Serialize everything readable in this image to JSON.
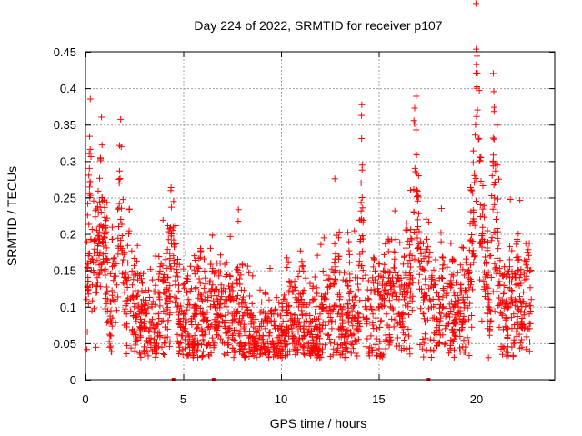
{
  "chart_data": {
    "type": "scatter",
    "title": "Day 224 of 2022, SRMTID for receiver p107",
    "xlabel": "GPS time / hours",
    "ylabel": "SRMTID / TECUs",
    "xlim": [
      0,
      24
    ],
    "ylim": [
      0,
      0.45
    ],
    "xticks": [
      0,
      5,
      10,
      15,
      20
    ],
    "xtick_labels": [
      "0",
      "5",
      "10",
      "15",
      "20"
    ],
    "yticks": [
      0,
      0.05,
      0.1,
      0.15,
      0.2,
      0.25,
      0.3,
      0.35,
      0.4,
      0.45
    ],
    "ytick_labels": [
      "0",
      "0.05",
      "0.1",
      "0.15",
      "0.2",
      "0.25",
      "0.3",
      "0.35",
      "0.4",
      "0.45"
    ],
    "grid": true,
    "marker": "+",
    "series": [
      {
        "name": "SRMTID",
        "color": "#ff0000",
        "points": [
          [
            0.05,
            0.11
          ],
          [
            0.1,
            0.16
          ],
          [
            0.15,
            0.17
          ],
          [
            0.2,
            0.29
          ],
          [
            0.22,
            0.25
          ],
          [
            0.25,
            0.27
          ],
          [
            0.3,
            0.15
          ],
          [
            0.35,
            0.13
          ],
          [
            0.4,
            0.15
          ],
          [
            0.45,
            0.19
          ],
          [
            0.5,
            0.16
          ],
          [
            0.6,
            0.14
          ],
          [
            0.7,
            0.17
          ],
          [
            0.8,
            0.23
          ],
          [
            0.85,
            0.25
          ],
          [
            0.9,
            0.19
          ],
          [
            1.0,
            0.2
          ],
          [
            1.1,
            0.12
          ],
          [
            1.2,
            0.08
          ],
          [
            1.3,
            0.06
          ],
          [
            1.4,
            0.16
          ],
          [
            1.5,
            0.11
          ],
          [
            1.6,
            0.13
          ],
          [
            1.7,
            0.21
          ],
          [
            1.8,
            0.22
          ],
          [
            1.9,
            0.18
          ],
          [
            2.0,
            0.12
          ],
          [
            2.1,
            0.09
          ],
          [
            2.2,
            0.14
          ],
          [
            2.3,
            0.11
          ],
          [
            2.4,
            0.13
          ],
          [
            2.5,
            0.1
          ],
          [
            2.6,
            0.08
          ],
          [
            2.7,
            0.12
          ],
          [
            2.8,
            0.06
          ],
          [
            2.9,
            0.1
          ],
          [
            3.0,
            0.07
          ],
          [
            3.1,
            0.09
          ],
          [
            3.2,
            0.05
          ],
          [
            3.3,
            0.08
          ],
          [
            3.4,
            0.1
          ],
          [
            3.5,
            0.07
          ],
          [
            3.6,
            0.09
          ],
          [
            3.7,
            0.06
          ],
          [
            3.8,
            0.11
          ],
          [
            3.9,
            0.08
          ],
          [
            4.0,
            0.12
          ],
          [
            4.1,
            0.09
          ],
          [
            4.2,
            0.14
          ],
          [
            4.3,
            0.16
          ],
          [
            4.4,
            0.2
          ],
          [
            4.5,
            0.17
          ],
          [
            4.6,
            0.13
          ],
          [
            4.7,
            0.1
          ],
          [
            4.8,
            0.08
          ],
          [
            4.9,
            0.06
          ],
          [
            5.0,
            0.09
          ],
          [
            5.1,
            0.07
          ],
          [
            5.2,
            0.12
          ],
          [
            5.3,
            0.06
          ],
          [
            5.4,
            0.08
          ],
          [
            5.5,
            0.05
          ],
          [
            5.6,
            0.1
          ],
          [
            5.7,
            0.07
          ],
          [
            5.8,
            0.12
          ],
          [
            5.9,
            0.09
          ],
          [
            6.0,
            0.06
          ],
          [
            6.1,
            0.11
          ],
          [
            6.2,
            0.08
          ],
          [
            6.3,
            0.05
          ],
          [
            6.4,
            0.1
          ],
          [
            6.5,
            0.13
          ],
          [
            6.6,
            0.07
          ],
          [
            6.7,
            0.09
          ],
          [
            6.8,
            0.06
          ],
          [
            6.9,
            0.11
          ],
          [
            7.0,
            0.08
          ],
          [
            7.1,
            0.05
          ],
          [
            7.2,
            0.1
          ],
          [
            7.3,
            0.07
          ],
          [
            7.4,
            0.12
          ],
          [
            7.5,
            0.09
          ],
          [
            7.6,
            0.04
          ],
          [
            7.7,
            0.08
          ],
          [
            7.8,
            0.15
          ],
          [
            7.9,
            0.06
          ],
          [
            8.0,
            0.1
          ],
          [
            8.1,
            0.07
          ],
          [
            8.2,
            0.05
          ],
          [
            8.3,
            0.09
          ],
          [
            8.4,
            0.06
          ],
          [
            8.5,
            0.08
          ],
          [
            8.6,
            0.05
          ],
          [
            8.7,
            0.07
          ],
          [
            8.8,
            0.04
          ],
          [
            8.9,
            0.06
          ],
          [
            9.0,
            0.08
          ],
          [
            9.1,
            0.05
          ],
          [
            9.2,
            0.07
          ],
          [
            9.3,
            0.04
          ],
          [
            9.4,
            0.06
          ],
          [
            9.5,
            0.08
          ],
          [
            9.6,
            0.05
          ],
          [
            9.7,
            0.07
          ],
          [
            9.8,
            0.04
          ],
          [
            9.9,
            0.06
          ],
          [
            10.0,
            0.05
          ],
          [
            10.1,
            0.08
          ],
          [
            10.2,
            0.06
          ],
          [
            10.3,
            0.1
          ],
          [
            10.4,
            0.07
          ],
          [
            10.5,
            0.09
          ],
          [
            10.6,
            0.06
          ],
          [
            10.7,
            0.08
          ],
          [
            10.8,
            0.05
          ],
          [
            10.9,
            0.1
          ],
          [
            11.0,
            0.07
          ],
          [
            11.1,
            0.12
          ],
          [
            11.2,
            0.06
          ],
          [
            11.3,
            0.09
          ],
          [
            11.4,
            0.05
          ],
          [
            11.5,
            0.08
          ],
          [
            11.6,
            0.04
          ],
          [
            11.7,
            0.07
          ],
          [
            11.8,
            0.1
          ],
          [
            11.9,
            0.06
          ],
          [
            12.0,
            0.09
          ],
          [
            12.1,
            0.07
          ],
          [
            12.2,
            0.11
          ],
          [
            12.3,
            0.08
          ],
          [
            12.4,
            0.12
          ],
          [
            12.5,
            0.1
          ],
          [
            12.6,
            0.07
          ],
          [
            12.7,
            0.13
          ],
          [
            12.8,
            0.15
          ],
          [
            12.9,
            0.09
          ],
          [
            13.0,
            0.11
          ],
          [
            13.1,
            0.07
          ],
          [
            13.2,
            0.1
          ],
          [
            13.3,
            0.06
          ],
          [
            13.4,
            0.09
          ],
          [
            13.5,
            0.12
          ],
          [
            13.6,
            0.08
          ],
          [
            13.7,
            0.1
          ],
          [
            13.8,
            0.14
          ],
          [
            13.9,
            0.07
          ],
          [
            14.0,
            0.09
          ],
          [
            14.05,
            0.19
          ],
          [
            14.1,
            0.27
          ],
          [
            14.15,
            0.25
          ],
          [
            14.2,
            0.15
          ],
          [
            14.3,
            0.1
          ],
          [
            14.4,
            0.08
          ],
          [
            14.5,
            0.11
          ],
          [
            14.6,
            0.06
          ],
          [
            14.7,
            0.09
          ],
          [
            14.8,
            0.12
          ],
          [
            14.9,
            0.07
          ],
          [
            15.0,
            0.1
          ],
          [
            15.1,
            0.08
          ],
          [
            15.2,
            0.11
          ],
          [
            15.3,
            0.13
          ],
          [
            15.4,
            0.09
          ],
          [
            15.5,
            0.12
          ],
          [
            15.6,
            0.1
          ],
          [
            15.7,
            0.14
          ],
          [
            15.8,
            0.16
          ],
          [
            15.9,
            0.11
          ],
          [
            16.0,
            0.09
          ],
          [
            16.1,
            0.12
          ],
          [
            16.2,
            0.08
          ],
          [
            16.3,
            0.11
          ],
          [
            16.4,
            0.14
          ],
          [
            16.5,
            0.1
          ],
          [
            16.6,
            0.13
          ],
          [
            16.7,
            0.17
          ],
          [
            16.8,
            0.23
          ],
          [
            16.85,
            0.29
          ],
          [
            16.9,
            0.31
          ],
          [
            16.95,
            0.26
          ],
          [
            17.0,
            0.21
          ],
          [
            17.1,
            0.16
          ],
          [
            17.2,
            0.12
          ],
          [
            17.3,
            0.09
          ],
          [
            17.4,
            0.13
          ],
          [
            17.5,
            0.16
          ],
          [
            17.6,
            0.11
          ],
          [
            17.7,
            0.14
          ],
          [
            17.8,
            0.1
          ],
          [
            17.9,
            0.13
          ],
          [
            18.0,
            0.08
          ],
          [
            18.1,
            0.11
          ],
          [
            18.2,
            0.14
          ],
          [
            18.3,
            0.1
          ],
          [
            18.4,
            0.07
          ],
          [
            18.5,
            0.12
          ],
          [
            18.6,
            0.09
          ],
          [
            18.7,
            0.13
          ],
          [
            18.8,
            0.1
          ],
          [
            18.9,
            0.08
          ],
          [
            19.0,
            0.12
          ],
          [
            19.1,
            0.09
          ],
          [
            19.2,
            0.13
          ],
          [
            19.3,
            0.11
          ],
          [
            19.4,
            0.08
          ],
          [
            19.5,
            0.12
          ],
          [
            19.6,
            0.15
          ],
          [
            19.7,
            0.13
          ],
          [
            19.8,
            0.19
          ],
          [
            19.85,
            0.23
          ],
          [
            19.9,
            0.28
          ],
          [
            19.95,
            0.35
          ],
          [
            20.0,
            0.4
          ],
          [
            20.05,
            0.37
          ],
          [
            20.1,
            0.33
          ],
          [
            20.15,
            0.3
          ],
          [
            20.2,
            0.24
          ],
          [
            20.3,
            0.2
          ],
          [
            20.4,
            0.16
          ],
          [
            20.5,
            0.13
          ],
          [
            20.6,
            0.1
          ],
          [
            20.7,
            0.08
          ],
          [
            20.8,
            0.28
          ],
          [
            20.85,
            0.3
          ],
          [
            20.9,
            0.33
          ],
          [
            20.95,
            0.27
          ],
          [
            21.0,
            0.22
          ],
          [
            21.1,
            0.18
          ],
          [
            21.2,
            0.13
          ],
          [
            21.3,
            0.09
          ],
          [
            21.4,
            0.12
          ],
          [
            21.5,
            0.1
          ],
          [
            21.6,
            0.07
          ],
          [
            21.7,
            0.14
          ],
          [
            21.8,
            0.11
          ],
          [
            21.9,
            0.09
          ],
          [
            22.0,
            0.13
          ],
          [
            22.1,
            0.1
          ],
          [
            22.2,
            0.14
          ],
          [
            22.3,
            0.08
          ],
          [
            22.4,
            0.12
          ],
          [
            22.5,
            0.1
          ],
          [
            22.6,
            0.15
          ],
          [
            22.7,
            0.09
          ],
          [
            22.8,
            0.11
          ]
        ],
        "zero_points": [
          [
            4.5,
            0
          ],
          [
            6.55,
            0
          ],
          [
            17.55,
            0
          ]
        ]
      }
    ]
  }
}
